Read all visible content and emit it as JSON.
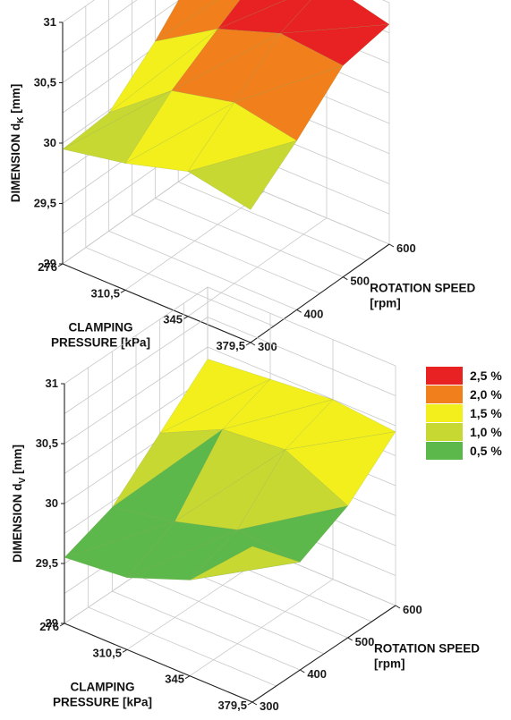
{
  "colors": {
    "r0": "#5cb84a",
    "r1": "#c8d832",
    "r2": "#f2ef1c",
    "r3": "#f07f1c",
    "r4": "#e82222"
  },
  "legend": [
    {
      "label": "2,5 %",
      "color": "#e82222"
    },
    {
      "label": "2,0 %",
      "color": "#f07f1c"
    },
    {
      "label": "1,5 %",
      "color": "#f2ef1c"
    },
    {
      "label": "1,0 %",
      "color": "#c8d832"
    },
    {
      "label": "0,5 %",
      "color": "#5cb84a"
    }
  ],
  "chart_data": [
    {
      "type": "surface",
      "zlabel": "DIMENSION d_K [mm]",
      "zlabel_main": "DIMENSION d",
      "zlabel_sub": "K",
      "zlabel_unit": " [mm]",
      "xlabel_lines": [
        "CLAMPING",
        "PRESSURE [kPa]"
      ],
      "ylabel_lines": [
        "ROTATION SPEED",
        "[rpm]"
      ],
      "x_ticks": [
        "276",
        "310,5",
        "345",
        "379,5"
      ],
      "y_ticks": [
        "300",
        "400",
        "500",
        "600"
      ],
      "z_ticks": [
        "29",
        "29,5",
        "30",
        "30,5",
        "31"
      ],
      "x_values": [
        276,
        310.5,
        345,
        379.5
      ],
      "y_values": [
        300,
        400,
        500,
        600
      ],
      "zlim": [
        29,
        31
      ],
      "z": [
        [
          29.95,
          29.98,
          30.3,
          30.7
        ],
        [
          30.05,
          30.38,
          30.62,
          30.85
        ],
        [
          30.2,
          30.5,
          30.8,
          30.95
        ],
        [
          30.1,
          30.4,
          30.75,
          30.82
        ]
      ]
    },
    {
      "type": "surface",
      "zlabel": "DIMENSION d_V [mm]",
      "zlabel_main": "DIMENSION d",
      "zlabel_sub": "V",
      "zlabel_unit": " [mm]",
      "xlabel_lines": [
        "CLAMPING",
        "PRESSURE [kPa]"
      ],
      "ylabel_lines": [
        "ROTATION SPEED",
        "[rpm]"
      ],
      "x_ticks": [
        "276",
        "310,5",
        "345",
        "379,5"
      ],
      "y_ticks": [
        "300",
        "400",
        "500",
        "600"
      ],
      "z_ticks": [
        "29",
        "29,5",
        "30",
        "30,5",
        "31"
      ],
      "x_values": [
        276,
        310.5,
        345,
        379.5
      ],
      "y_values": [
        300,
        400,
        500,
        600
      ],
      "zlim": [
        29,
        31
      ],
      "z": [
        [
          29.55,
          29.7,
          30.05,
          30.4
        ],
        [
          29.6,
          29.8,
          30.3,
          30.45
        ],
        [
          29.8,
          29.95,
          30.35,
          30.5
        ],
        [
          30.3,
          29.9,
          30.1,
          30.45
        ]
      ]
    }
  ]
}
